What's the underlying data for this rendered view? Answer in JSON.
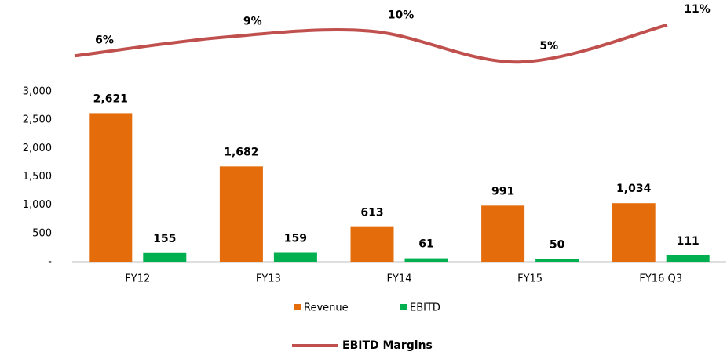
{
  "chart_data": {
    "type": "bar",
    "categories": [
      "FY12",
      "FY13",
      "FY14",
      "FY15",
      "FY16 Q3"
    ],
    "series": [
      {
        "name": "Revenue",
        "color": "#e46c0a",
        "values": [
          2621,
          1682,
          613,
          991,
          1034
        ],
        "value_labels": [
          "2,621",
          "1,682",
          "613",
          "991",
          "1,034"
        ]
      },
      {
        "name": "EBITD",
        "color": "#00b050",
        "values": [
          155,
          159,
          61,
          50,
          111
        ]
      },
      {
        "name": "EBITD Margins",
        "color": "#c0504d",
        "type": "line",
        "axis": "y2",
        "values": [
          6,
          9,
          10,
          5,
          11
        ],
        "value_labels": [
          "6%",
          "9%",
          "10%",
          "5%",
          "11%"
        ]
      }
    ],
    "ylim": [
      0,
      3000
    ],
    "yticks": [
      {
        "value": 0,
        "label": "-"
      },
      500,
      {
        "value": 1000,
        "label": "1,000"
      },
      {
        "value": 1500,
        "label": "1,500"
      },
      {
        "value": 2000,
        "label": "2,000"
      },
      {
        "value": 2500,
        "label": "2,500"
      },
      {
        "value": 3000,
        "label": "3,000"
      }
    ],
    "y2lim": [
      3,
      12.5
    ],
    "grid": false
  }
}
